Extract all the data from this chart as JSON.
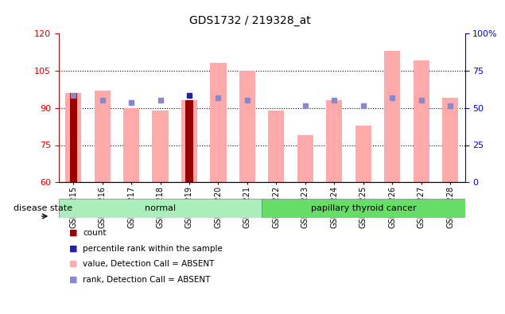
{
  "title": "GDS1732 / 219328_at",
  "samples": [
    "GSM85215",
    "GSM85216",
    "GSM85217",
    "GSM85218",
    "GSM85219",
    "GSM85220",
    "GSM85221",
    "GSM85222",
    "GSM85223",
    "GSM85224",
    "GSM85225",
    "GSM85226",
    "GSM85227",
    "GSM85228"
  ],
  "red_bar_heights": [
    96,
    0,
    0,
    0,
    93,
    0,
    0,
    0,
    0,
    0,
    0,
    0,
    0,
    0
  ],
  "pink_bar_tops": [
    96,
    97,
    90,
    89,
    93,
    108,
    105,
    89,
    79,
    93,
    83,
    113,
    109,
    94
  ],
  "blue_square_y": [
    95,
    93,
    92,
    93,
    95,
    94,
    93,
    0,
    91,
    93,
    91,
    94,
    93,
    91
  ],
  "blue_square_present": [
    true,
    true,
    true,
    true,
    true,
    true,
    true,
    false,
    true,
    true,
    true,
    true,
    true,
    true
  ],
  "ylim_left": [
    60,
    120
  ],
  "ylim_right": [
    0,
    100
  ],
  "yticks_left": [
    60,
    75,
    90,
    105,
    120
  ],
  "yticks_right": [
    0,
    25,
    50,
    75,
    100
  ],
  "ytick_labels_right": [
    "0",
    "25",
    "50",
    "75",
    "100%"
  ],
  "normal_color": "#AAEEBB",
  "cancer_color": "#66DD66",
  "bar_bottom": 60,
  "red_bar_color": "#990000",
  "pink_bar_color": "#FFAAAA",
  "blue_sq_color": "#8888CC",
  "dark_blue_sq_color": "#2222AA",
  "axis_color_left": "#CC0000",
  "axis_color_right": "#0000CC",
  "legend_items": [
    {
      "color": "#990000",
      "label": "count"
    },
    {
      "color": "#2222AA",
      "label": "percentile rank within the sample"
    },
    {
      "color": "#FFAAAA",
      "label": "value, Detection Call = ABSENT"
    },
    {
      "color": "#8888CC",
      "label": "rank, Detection Call = ABSENT"
    }
  ]
}
